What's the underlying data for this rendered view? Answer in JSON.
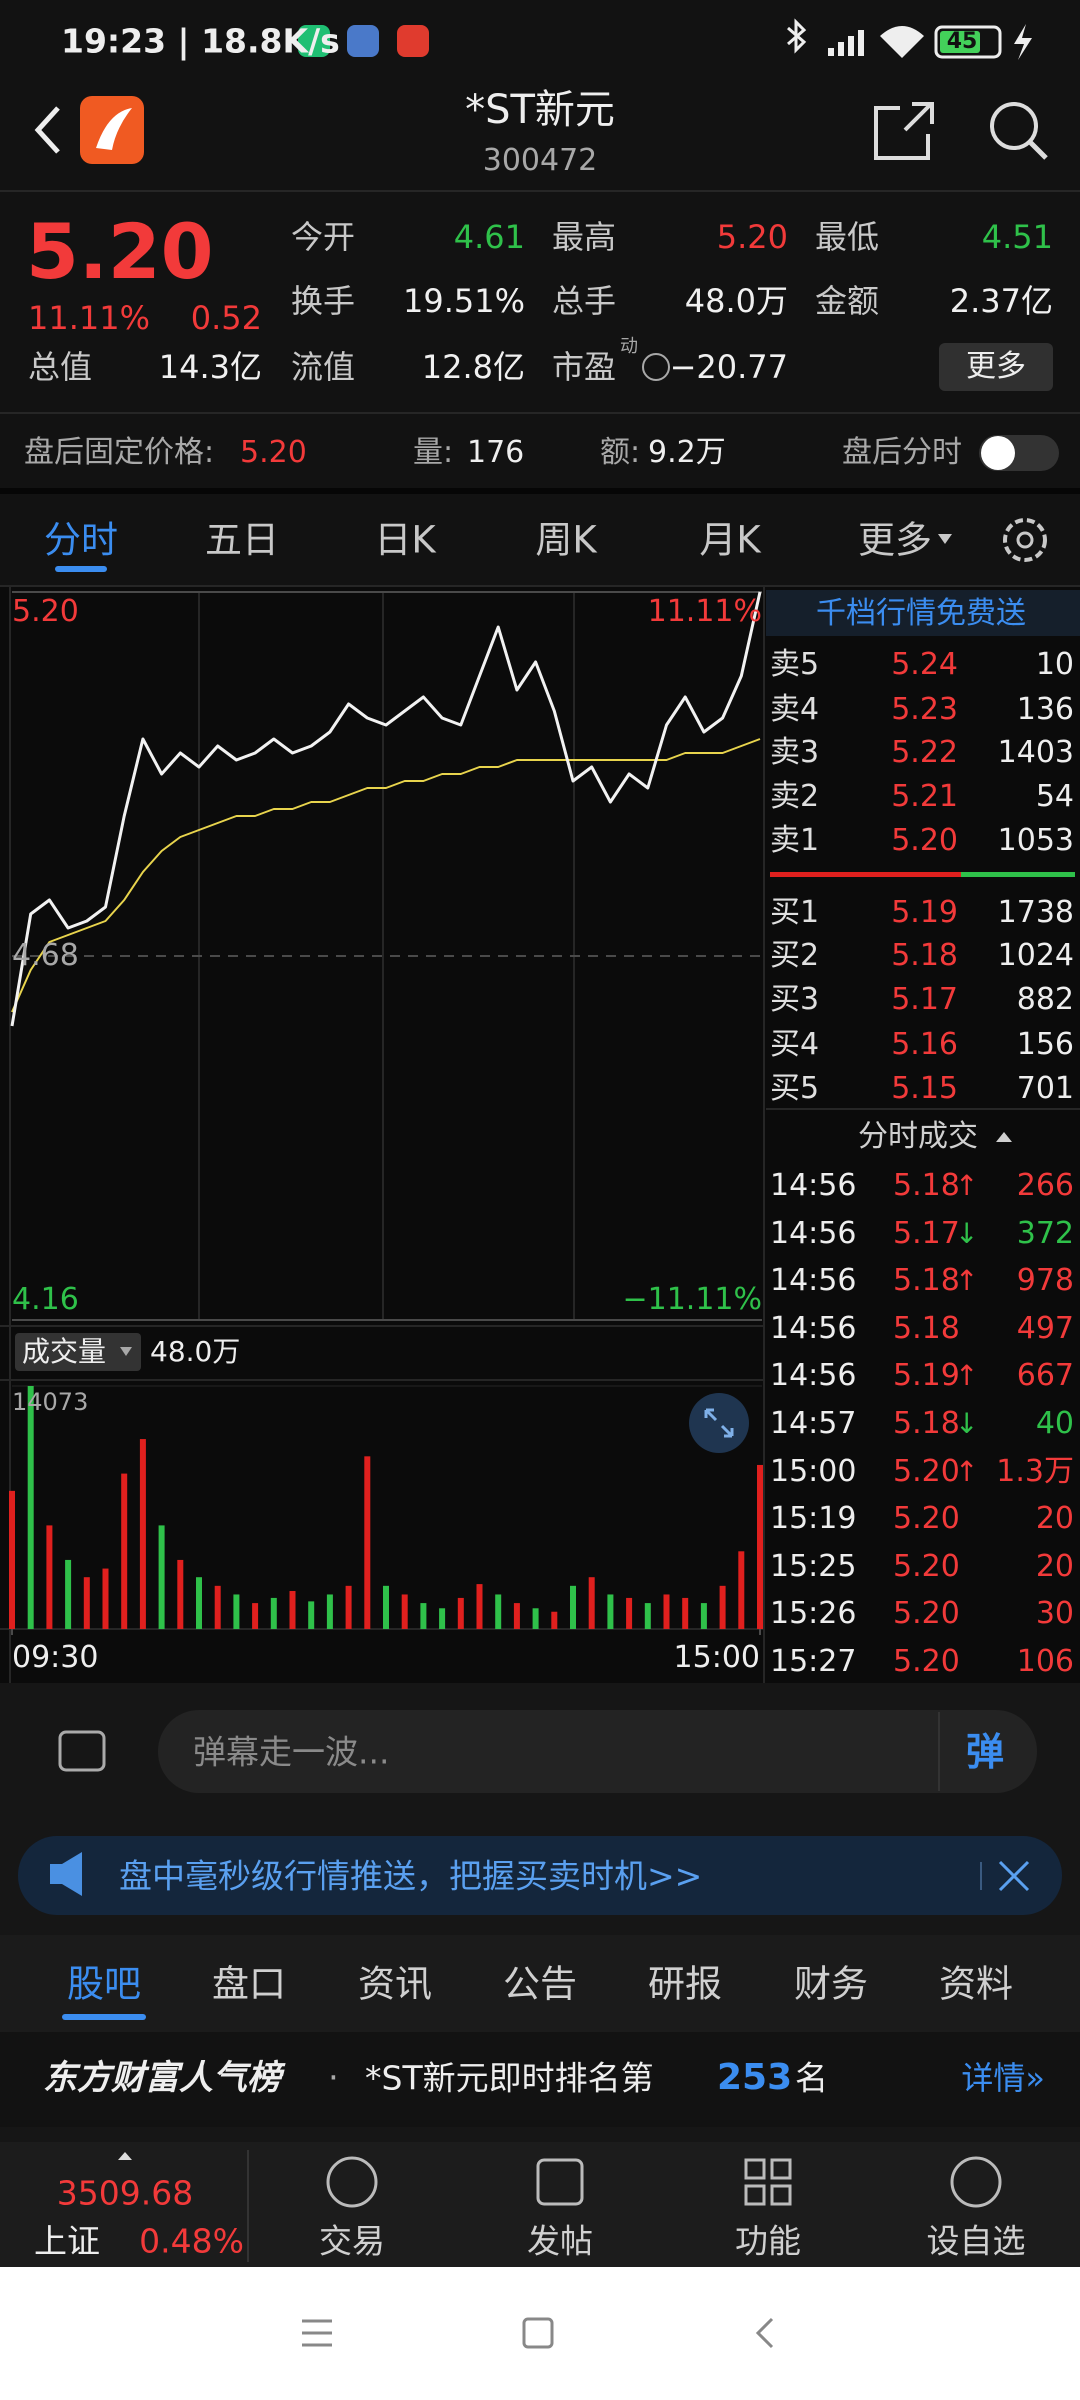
{
  "status_bar": {
    "time": "19:23 | 18.8K/s",
    "battery": "45"
  },
  "header": {
    "title": "*ST新元",
    "code": "300472"
  },
  "quote": {
    "price": "5.20",
    "change_pct": "11.11%",
    "change": "0.52",
    "more": "更多",
    "stats": [
      [
        {
          "label": "今开",
          "value": "4.61",
          "color": "#2fc14a"
        },
        {
          "label": "最高",
          "value": "5.20",
          "color": "#f23a3a"
        },
        {
          "label": "最低",
          "value": "4.51",
          "color": "#2fc14a"
        }
      ],
      [
        {
          "label": "换手",
          "value": "19.51%"
        },
        {
          "label": "总手",
          "value": "48.0万"
        },
        {
          "label": "金额",
          "value": "2.37亿"
        }
      ],
      [
        {
          "label": "总值",
          "value": "14.3亿"
        },
        {
          "label": "流值",
          "value": "12.8亿"
        },
        {
          "label": "市盈",
          "note": "动",
          "value": "−20.77"
        }
      ]
    ]
  },
  "after_hours": {
    "label": "盘后固定价格:",
    "price": "5.20",
    "volume_label": "量:",
    "volume": "176",
    "amount_label": "额:",
    "amount": "9.2万",
    "link": "盘后分时"
  },
  "tabs": [
    "分时",
    "五日",
    "日K",
    "周K",
    "月K",
    "更多"
  ],
  "chart_data": [
    {
      "type": "line",
      "x": [
        0,
        6,
        12,
        18,
        24,
        30,
        36,
        42,
        48,
        54,
        60,
        66,
        72,
        78,
        84,
        90,
        96,
        102,
        108,
        114,
        120,
        126,
        132,
        138,
        144,
        150,
        156,
        162,
        168,
        174,
        180,
        186,
        192,
        198,
        204,
        210,
        216,
        222,
        228,
        234,
        240
      ],
      "xlim": [
        0,
        240
      ],
      "ylim": [
        4.16,
        5.2
      ],
      "yticks": [
        {
          "value": 5.2,
          "label": "5.20"
        },
        {
          "value": 4.68,
          "label": "4.68"
        },
        {
          "value": 4.16,
          "label": "4.16"
        }
      ],
      "y2lim": [
        -11.11,
        11.11
      ],
      "y2ticks": [
        {
          "value": 11.11,
          "label": "11.11%"
        },
        {
          "value": -11.11,
          "label": "−11.11%"
        }
      ],
      "series": [
        {
          "color": "#f2f2f2",
          "values": [
            4.58,
            4.74,
            4.76,
            4.72,
            4.73,
            4.75,
            4.88,
            4.99,
            4.94,
            4.97,
            4.95,
            4.98,
            4.96,
            4.97,
            4.99,
            4.97,
            4.98,
            5.0,
            5.04,
            5.02,
            5.01,
            5.03,
            5.05,
            5.02,
            5.01,
            5.08,
            5.15,
            5.06,
            5.1,
            5.03,
            4.93,
            4.95,
            4.9,
            4.94,
            4.92,
            5.01,
            5.05,
            5.0,
            5.02,
            5.08,
            5.2
          ]
        },
        {
          "color": "#e8d44d",
          "values": [
            4.6,
            4.66,
            4.7,
            4.71,
            4.72,
            4.73,
            4.76,
            4.8,
            4.83,
            4.85,
            4.86,
            4.87,
            4.88,
            4.88,
            4.89,
            4.89,
            4.9,
            4.9,
            4.91,
            4.92,
            4.92,
            4.93,
            4.93,
            4.94,
            4.94,
            4.95,
            4.95,
            4.96,
            4.96,
            4.96,
            4.96,
            4.96,
            4.96,
            4.96,
            4.96,
            4.96,
            4.97,
            4.97,
            4.97,
            4.98,
            4.99
          ]
        }
      ]
    },
    {
      "type": "bar",
      "title": "成交量",
      "total": "48.0万",
      "x": [
        0,
        6,
        12,
        18,
        24,
        30,
        36,
        42,
        48,
        54,
        60,
        66,
        72,
        78,
        84,
        90,
        96,
        102,
        108,
        114,
        120,
        126,
        132,
        138,
        144,
        150,
        156,
        162,
        168,
        174,
        180,
        186,
        192,
        198,
        204,
        210,
        216,
        222,
        228,
        234,
        240
      ],
      "xlim": [
        0,
        240
      ],
      "xticks": [
        {
          "value": 0,
          "label": "09:30"
        },
        {
          "value": 240,
          "label": "15:00"
        }
      ],
      "ylim": [
        0,
        14073
      ],
      "yticks": [
        14073
      ],
      "values": [
        8000,
        14073,
        6000,
        4000,
        3000,
        3500,
        9000,
        11000,
        6000,
        4000,
        3000,
        2500,
        2000,
        1500,
        1800,
        2200,
        1600,
        2000,
        2500,
        10000,
        2500,
        2000,
        1500,
        1200,
        1800,
        2600,
        2000,
        1500,
        1200,
        1000,
        2500,
        3000,
        2000,
        1800,
        1500,
        2000,
        1800,
        1500,
        2500,
        4500,
        9500
      ],
      "colors": [
        "#e0201e",
        "#2fc14a",
        "#e0201e",
        "#2fc14a",
        "#e0201e",
        "#e0201e",
        "#e0201e",
        "#e0201e",
        "#2fc14a",
        "#e0201e",
        "#2fc14a",
        "#e0201e",
        "#2fc14a",
        "#e0201e",
        "#2fc14a",
        "#e0201e",
        "#2fc14a",
        "#2fc14a",
        "#e0201e",
        "#e0201e",
        "#2fc14a",
        "#e0201e",
        "#2fc14a",
        "#2fc14a",
        "#e0201e",
        "#e0201e",
        "#2fc14a",
        "#e0201e",
        "#2fc14a",
        "#e0201e",
        "#2fc14a",
        "#e0201e",
        "#2fc14a",
        "#e0201e",
        "#2fc14a",
        "#e0201e",
        "#e0201e",
        "#2fc14a",
        "#e0201e",
        "#e0201e",
        "#e0201e"
      ]
    }
  ],
  "order_book": {
    "heading": "千档行情免费送",
    "asks": [
      {
        "label": "卖5",
        "price": "5.24",
        "qty": "10"
      },
      {
        "label": "卖4",
        "price": "5.23",
        "qty": "136"
      },
      {
        "label": "卖3",
        "price": "5.22",
        "qty": "1403"
      },
      {
        "label": "卖2",
        "price": "5.21",
        "qty": "54"
      },
      {
        "label": "卖1",
        "price": "5.20",
        "qty": "1053"
      }
    ],
    "bids": [
      {
        "label": "买1",
        "price": "5.19",
        "qty": "1738"
      },
      {
        "label": "买2",
        "price": "5.18",
        "qty": "1024"
      },
      {
        "label": "买3",
        "price": "5.17",
        "qty": "882"
      },
      {
        "label": "买4",
        "price": "5.16",
        "qty": "156"
      },
      {
        "label": "买5",
        "price": "5.15",
        "qty": "701"
      }
    ]
  },
  "trades": {
    "heading": "分时成交",
    "rows": [
      {
        "time": "14:56",
        "price": "5.18",
        "arrow": "↑",
        "qty": "266",
        "color": "#f23a3a"
      },
      {
        "time": "14:56",
        "price": "5.17",
        "arrow": "↓",
        "qty": "372",
        "color": "#2fc14a"
      },
      {
        "time": "14:56",
        "price": "5.18",
        "arrow": "↑",
        "qty": "978",
        "color": "#f23a3a"
      },
      {
        "time": "14:56",
        "price": "5.18",
        "qty": "497",
        "color": "#f23a3a"
      },
      {
        "time": "14:56",
        "price": "5.19",
        "arrow": "↑",
        "qty": "667",
        "color": "#f23a3a"
      },
      {
        "time": "14:57",
        "price": "5.18",
        "arrow": "↓",
        "qty": "40",
        "color": "#2fc14a"
      },
      {
        "time": "15:00",
        "price": "5.20",
        "arrow": "↑",
        "qty": "1.3万",
        "color": "#f23a3a"
      },
      {
        "time": "15:19",
        "price": "5.20",
        "qty": "20",
        "color": "#f23a3a"
      },
      {
        "time": "15:25",
        "price": "5.20",
        "qty": "20",
        "color": "#f23a3a"
      },
      {
        "time": "15:26",
        "price": "5.20",
        "qty": "30",
        "color": "#f23a3a"
      },
      {
        "time": "15:27",
        "price": "5.20",
        "qty": "106",
        "color": "#f23a3a"
      }
    ]
  },
  "comment": {
    "placeholder": "弹幕走一波...",
    "button": "弹"
  },
  "banner": {
    "text": "盘中毫秒级行情推送，把握买卖时机>>"
  },
  "bottom_tabs": [
    "股吧",
    "盘口",
    "资讯",
    "公告",
    "研报",
    "财务",
    "资料"
  ],
  "ranking": {
    "title": "东方财富人气榜",
    "dot": "·",
    "text": "*ST新元即时排名第",
    "rank": "253",
    "suffix": "名",
    "link": "详情»"
  },
  "bottom_nav": {
    "index_value": "3509.68",
    "index_name": "上证",
    "index_change": "0.48%",
    "items": [
      "交易",
      "发帖",
      "功能",
      "设自选"
    ]
  }
}
